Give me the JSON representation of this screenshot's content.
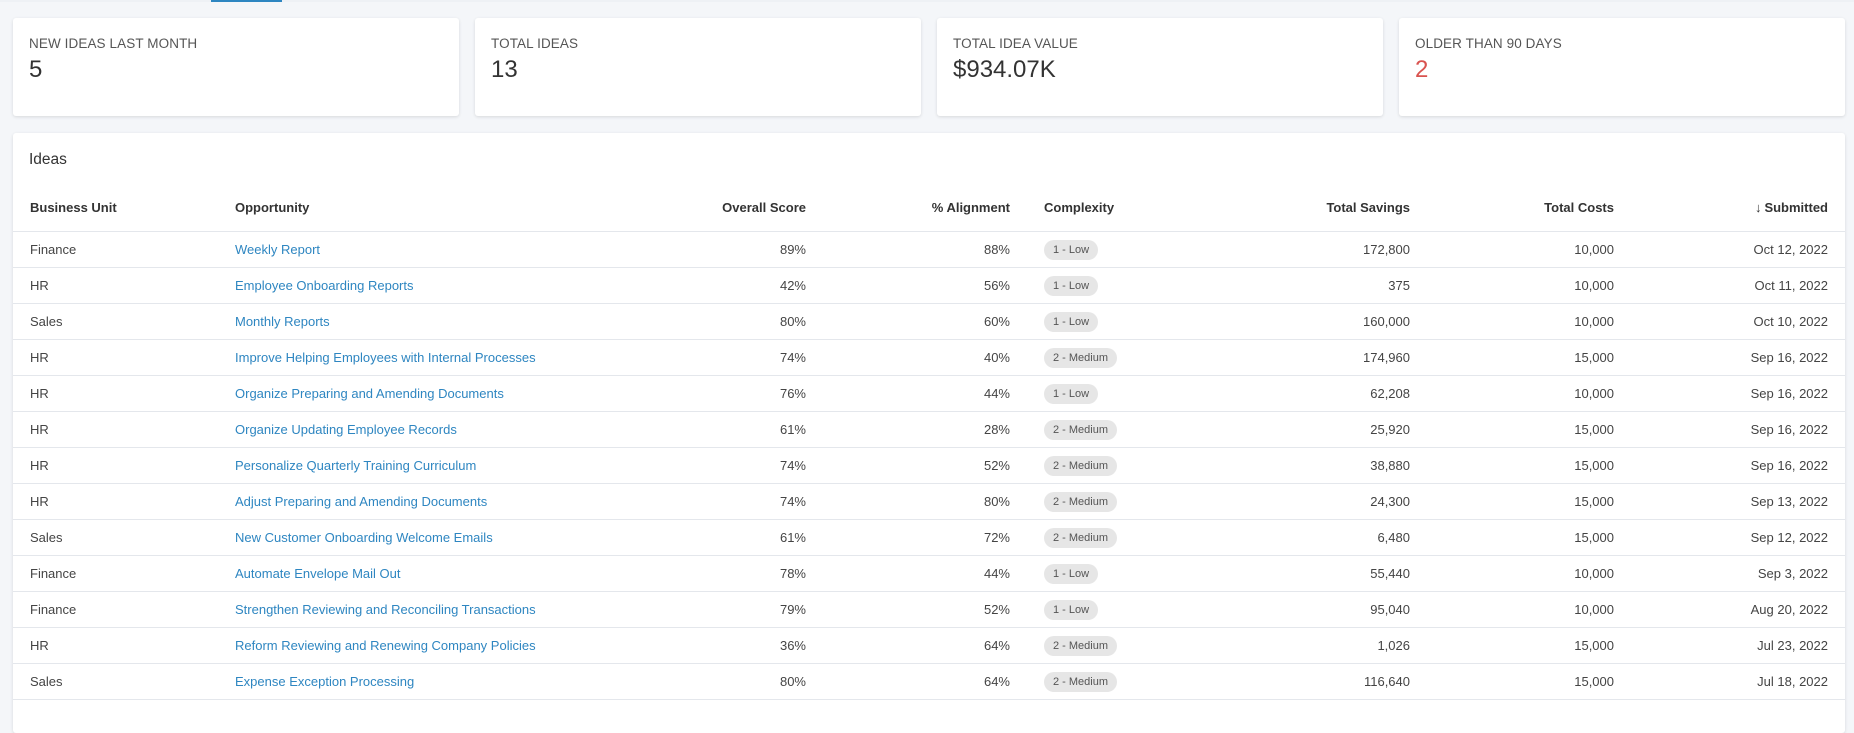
{
  "stats": [
    {
      "label": "NEW IDEAS LAST MONTH",
      "value": "5",
      "alert": false
    },
    {
      "label": "TOTAL IDEAS",
      "value": "13",
      "alert": false
    },
    {
      "label": "TOTAL IDEA VALUE",
      "value": "$934.07K",
      "alert": false
    },
    {
      "label": "OLDER THAN 90 DAYS",
      "value": "2",
      "alert": true
    }
  ],
  "colors": {
    "accent": "#2e86c1",
    "alert": "#d9534f",
    "chip_bg": "#e6e6e6"
  },
  "ideas": {
    "title": "Ideas",
    "sort_icon": "arrow-down-icon",
    "columns": {
      "business_unit": "Business Unit",
      "opportunity": "Opportunity",
      "overall_score": "Overall Score",
      "alignment": "% Alignment",
      "complexity": "Complexity",
      "total_savings": "Total Savings",
      "total_costs": "Total Costs",
      "submitted": "Submitted"
    },
    "rows": [
      {
        "business_unit": "Finance",
        "opportunity": "Weekly Report",
        "overall_score": "89%",
        "alignment": "88%",
        "complexity": "1 - Low",
        "total_savings": "172,800",
        "total_costs": "10,000",
        "submitted": "Oct 12, 2022"
      },
      {
        "business_unit": "HR",
        "opportunity": "Employee Onboarding Reports",
        "overall_score": "42%",
        "alignment": "56%",
        "complexity": "1 - Low",
        "total_savings": "375",
        "total_costs": "10,000",
        "submitted": "Oct 11, 2022"
      },
      {
        "business_unit": "Sales",
        "opportunity": "Monthly Reports",
        "overall_score": "80%",
        "alignment": "60%",
        "complexity": "1 - Low",
        "total_savings": "160,000",
        "total_costs": "10,000",
        "submitted": "Oct 10, 2022"
      },
      {
        "business_unit": "HR",
        "opportunity": "Improve Helping Employees with Internal Processes",
        "overall_score": "74%",
        "alignment": "40%",
        "complexity": "2 - Medium",
        "total_savings": "174,960",
        "total_costs": "15,000",
        "submitted": "Sep 16, 2022"
      },
      {
        "business_unit": "HR",
        "opportunity": "Organize Preparing and Amending Documents",
        "overall_score": "76%",
        "alignment": "44%",
        "complexity": "1 - Low",
        "total_savings": "62,208",
        "total_costs": "10,000",
        "submitted": "Sep 16, 2022"
      },
      {
        "business_unit": "HR",
        "opportunity": "Organize Updating Employee Records",
        "overall_score": "61%",
        "alignment": "28%",
        "complexity": "2 - Medium",
        "total_savings": "25,920",
        "total_costs": "15,000",
        "submitted": "Sep 16, 2022"
      },
      {
        "business_unit": "HR",
        "opportunity": "Personalize Quarterly Training Curriculum",
        "overall_score": "74%",
        "alignment": "52%",
        "complexity": "2 - Medium",
        "total_savings": "38,880",
        "total_costs": "15,000",
        "submitted": "Sep 16, 2022"
      },
      {
        "business_unit": "HR",
        "opportunity": "Adjust Preparing and Amending Documents",
        "overall_score": "74%",
        "alignment": "80%",
        "complexity": "2 - Medium",
        "total_savings": "24,300",
        "total_costs": "15,000",
        "submitted": "Sep 13, 2022"
      },
      {
        "business_unit": "Sales",
        "opportunity": "New Customer Onboarding Welcome Emails",
        "overall_score": "61%",
        "alignment": "72%",
        "complexity": "2 - Medium",
        "total_savings": "6,480",
        "total_costs": "15,000",
        "submitted": "Sep 12, 2022"
      },
      {
        "business_unit": "Finance",
        "opportunity": "Automate Envelope Mail Out",
        "overall_score": "78%",
        "alignment": "44%",
        "complexity": "1 - Low",
        "total_savings": "55,440",
        "total_costs": "10,000",
        "submitted": "Sep 3, 2022"
      },
      {
        "business_unit": "Finance",
        "opportunity": "Strengthen Reviewing and Reconciling Transactions",
        "overall_score": "79%",
        "alignment": "52%",
        "complexity": "1 - Low",
        "total_savings": "95,040",
        "total_costs": "10,000",
        "submitted": "Aug 20, 2022"
      },
      {
        "business_unit": "HR",
        "opportunity": "Reform Reviewing and Renewing Company Policies",
        "overall_score": "36%",
        "alignment": "64%",
        "complexity": "2 - Medium",
        "total_savings": "1,026",
        "total_costs": "15,000",
        "submitted": "Jul 23, 2022"
      },
      {
        "business_unit": "Sales",
        "opportunity": "Expense Exception Processing",
        "overall_score": "80%",
        "alignment": "64%",
        "complexity": "2 - Medium",
        "total_savings": "116,640",
        "total_costs": "15,000",
        "submitted": "Jul 18, 2022"
      }
    ]
  }
}
